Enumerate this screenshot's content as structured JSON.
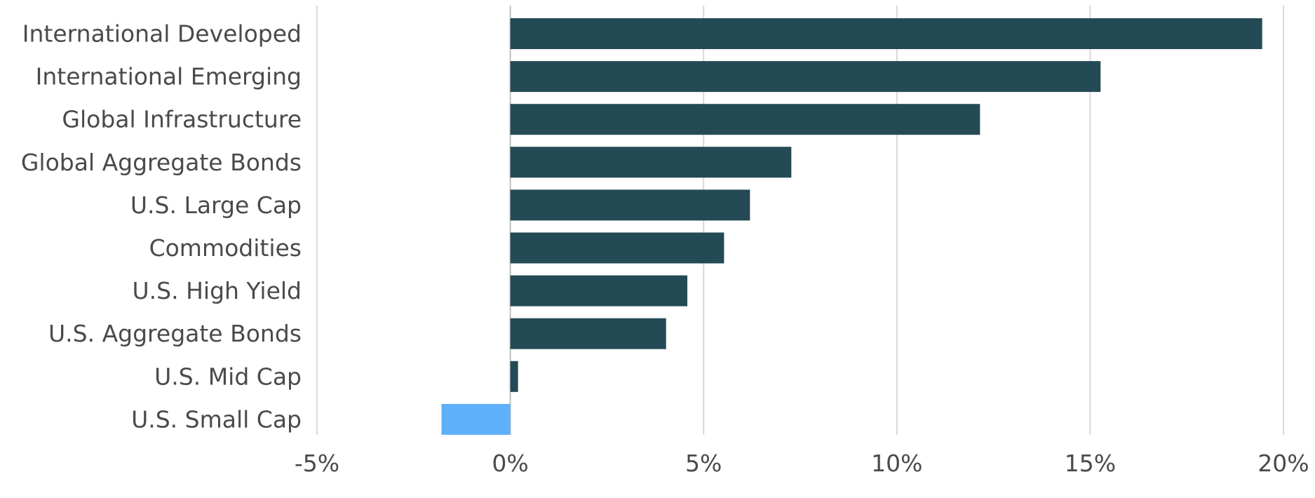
{
  "chart_data": {
    "type": "bar",
    "orientation": "horizontal",
    "title": "",
    "xlabel": "",
    "ylabel": "",
    "categories": [
      "International Developed",
      "International Emerging",
      "Global Infrastructure",
      "Global Aggregate Bonds",
      "U.S. Large Cap",
      "Commodities",
      "U.S. High Yield",
      "U.S. Aggregate Bonds",
      "U.S. Mid Cap",
      "U.S. Small Cap"
    ],
    "values": [
      19.45,
      15.27,
      12.15,
      7.27,
      6.2,
      5.53,
      4.58,
      4.03,
      0.2,
      -1.78
    ],
    "xlim": [
      -5,
      20
    ],
    "xticks": [
      -5,
      0,
      5,
      10,
      15,
      20
    ],
    "xtick_labels": [
      "-5%",
      "0%",
      "5%",
      "10%",
      "15%",
      "20%"
    ],
    "grid": "vertical",
    "legend": "none",
    "colors": {
      "positive": "#244a55",
      "negative": "#5eb0fa",
      "grid": "#d9d9d9",
      "text": "#4a4a4a"
    }
  }
}
